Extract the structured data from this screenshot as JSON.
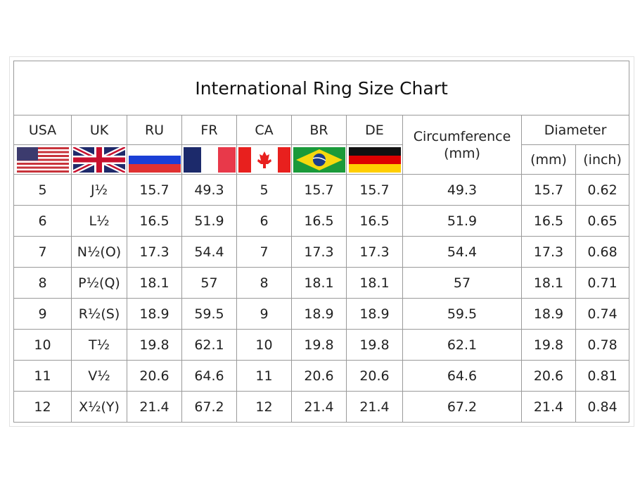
{
  "title": "International Ring Size Chart",
  "headers": {
    "usa": "USA",
    "uk": "UK",
    "ru": "RU",
    "fr": "FR",
    "ca": "CA",
    "br": "BR",
    "de": "DE",
    "circumference": "Circumference\n(mm)",
    "diameter": "Diameter",
    "diameter_mm": "(mm)",
    "diameter_inch": "(inch)"
  },
  "flags": [
    "us-flag",
    "uk-flag",
    "russia-flag",
    "france-flag",
    "canada-flag",
    "brazil-flag",
    "germany-flag"
  ],
  "rows": [
    [
      "5",
      "J½",
      "15.7",
      "49.3",
      "5",
      "15.7",
      "15.7",
      "49.3",
      "15.7",
      "0.62"
    ],
    [
      "6",
      "L½",
      "16.5",
      "51.9",
      "6",
      "16.5",
      "16.5",
      "51.9",
      "16.5",
      "0.65"
    ],
    [
      "7",
      "N½(O)",
      "17.3",
      "54.4",
      "7",
      "17.3",
      "17.3",
      "54.4",
      "17.3",
      "0.68"
    ],
    [
      "8",
      "P½(Q)",
      "18.1",
      "57",
      "8",
      "18.1",
      "18.1",
      "57",
      "18.1",
      "0.71"
    ],
    [
      "9",
      "R½(S)",
      "18.9",
      "59.5",
      "9",
      "18.9",
      "18.9",
      "59.5",
      "18.9",
      "0.74"
    ],
    [
      "10",
      "T½",
      "19.8",
      "62.1",
      "10",
      "19.8",
      "19.8",
      "62.1",
      "19.8",
      "0.78"
    ],
    [
      "11",
      "V½",
      "20.6",
      "64.6",
      "11",
      "20.6",
      "20.6",
      "64.6",
      "20.6",
      "0.81"
    ],
    [
      "12",
      "X½(Y)",
      "21.4",
      "67.2",
      "12",
      "21.4",
      "21.4",
      "67.2",
      "21.4",
      "0.84"
    ]
  ]
}
